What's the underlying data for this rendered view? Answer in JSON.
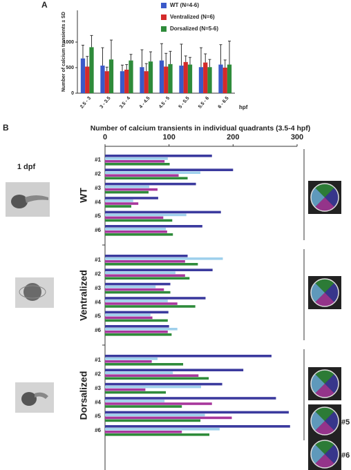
{
  "figure": {
    "panel_a": "A",
    "panel_b": "B",
    "stage": "1 dpf",
    "circle_labels": [
      "#5",
      "#6"
    ]
  },
  "chart_data": [
    {
      "type": "bar",
      "y_label": "Number of calcium transients ± SD",
      "x_unit": "hpf",
      "categories": [
        "2.5 - 3",
        "3 - 3.5",
        "3.5 - 4",
        "4 - 4.5",
        "4.5 - 5",
        "5 - 5.5",
        "5.5 - 6",
        "6 - 6.5"
      ],
      "series": [
        {
          "name": "WT (N=4-6)",
          "color": "#3a59c9",
          "values": [
            680,
            540,
            430,
            510,
            640,
            540,
            510,
            560
          ],
          "errors": [
            260,
            350,
            120,
            340,
            330,
            420,
            380,
            390
          ]
        },
        {
          "name": "Ventralized (N=6)",
          "color": "#d42a2a",
          "values": [
            520,
            430,
            460,
            430,
            520,
            610,
            600,
            500
          ],
          "errors": [
            200,
            80,
            100,
            150,
            260,
            120,
            170,
            150
          ]
        },
        {
          "name": "Dorsalized (N=5-6)",
          "color": "#2e8b3a",
          "values": [
            900,
            660,
            640,
            620,
            570,
            560,
            510,
            560
          ],
          "errors": [
            230,
            380,
            120,
            190,
            250,
            140,
            150,
            460
          ]
        }
      ],
      "ylim": [
        0,
        1500
      ],
      "yticks": [
        0,
        500,
        1000
      ],
      "legend": "top-right"
    },
    {
      "type": "hbar",
      "title": "Number of calcium transients in individual quadrants (3.5-4 hpf)",
      "groups": [
        "WT",
        "Ventralized",
        "Dorsalized"
      ],
      "categories": [
        "#1",
        "#2",
        "#3",
        "#4",
        "#5",
        "#6",
        "#1",
        "#2",
        "#3",
        "#4",
        "#5",
        "#6",
        "#1",
        "#2",
        "#3",
        "#4",
        "#5",
        "#6"
      ],
      "series": [
        {
          "color": "#3b3a9e",
          "values": [
            167,
            200,
            142,
            83,
            181,
            152,
            129,
            168,
            102,
            157,
            99,
            100,
            260,
            216,
            183,
            267,
            287,
            289
          ]
        },
        {
          "color": "#9fd0ec",
          "values": [
            98,
            149,
            69,
            44,
            127,
            95,
            184,
            110,
            79,
            98,
            71,
            113,
            82,
            106,
            150,
            93,
            156,
            179
          ]
        },
        {
          "color": "#a8379c",
          "values": [
            93,
            115,
            82,
            52,
            91,
            97,
            125,
            125,
            92,
            113,
            74,
            98,
            73,
            146,
            63,
            167,
            198,
            120
          ]
        },
        {
          "color": "#2e8b3a",
          "values": [
            101,
            129,
            68,
            41,
            105,
            106,
            145,
            132,
            102,
            141,
            98,
            104,
            122,
            162,
            95,
            120,
            149,
            163
          ]
        }
      ],
      "xlim": [
        0,
        300
      ],
      "xticks": [
        0,
        100,
        200,
        300
      ]
    }
  ]
}
